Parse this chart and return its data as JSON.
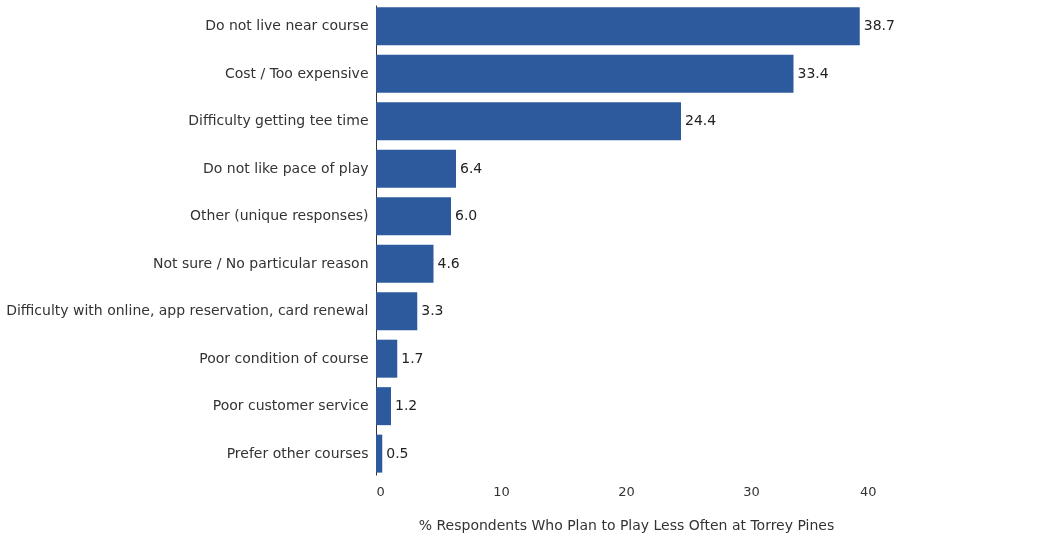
{
  "chart_data": {
    "type": "bar",
    "orientation": "horizontal",
    "xlabel": "% Respondents Who Plan to Play Less Often at Torrey Pines",
    "categories": [
      "Do not live near course",
      "Cost / Too expensive",
      "Difficulty getting tee time",
      "Do not like pace of play",
      "Other (unique responses)",
      "Not sure / No particular reason",
      "Difficulty with online, app reservation, card renewal",
      "Poor condition of course",
      "Poor customer service",
      "Prefer other courses"
    ],
    "values": [
      38.7,
      33.4,
      24.4,
      6.4,
      6.0,
      4.6,
      3.3,
      1.7,
      1.2,
      0.5
    ],
    "value_labels": [
      "38.7",
      "33.4",
      "24.4",
      "6.4",
      "6.0",
      "4.6",
      "3.3",
      "1.7",
      "1.2",
      "0.5"
    ],
    "color": "#2c5a9c",
    "xlim": [
      0,
      40
    ],
    "xticks": [
      0,
      10,
      20,
      30,
      40
    ],
    "grid": false
  }
}
